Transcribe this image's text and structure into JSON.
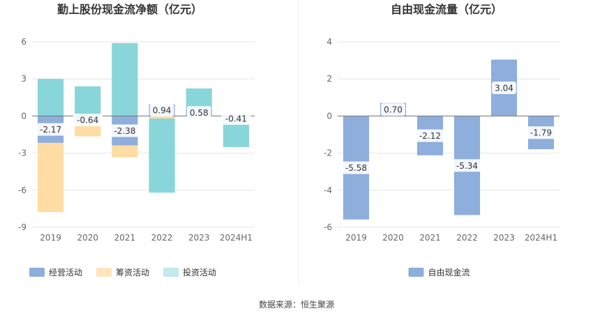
{
  "source_label": "数据来源：恒生聚源",
  "chart_data": [
    {
      "type": "bar",
      "stacked": true,
      "title": "勤上股份现金流净额（亿元）",
      "categories": [
        "2019",
        "2020",
        "2021",
        "2022",
        "2023",
        "2024H1"
      ],
      "yticks": [
        "6",
        "3",
        "0",
        "-3",
        "-6",
        "-9"
      ],
      "ylim": [
        -9,
        6
      ],
      "series": [
        {
          "name": "经营活动",
          "color": "#8eaedc",
          "values": [
            -2.17,
            -0.64,
            -2.38,
            0.94,
            0.58,
            -0.41
          ]
        },
        {
          "name": "筹资活动",
          "color": "#fedca3",
          "values": [
            -5.6,
            -1.0,
            -0.95,
            -0.2,
            0,
            0
          ]
        },
        {
          "name": "投资活动",
          "color": "#88d6d9",
          "values": [
            3.0,
            2.4,
            5.9,
            -6.0,
            1.65,
            -2.1
          ]
        }
      ],
      "data_labels": [
        "-2.17",
        "-0.64",
        "-2.38",
        "0.94",
        "0.58",
        "-0.41"
      ],
      "legend": "bottom"
    },
    {
      "type": "bar",
      "title": "自由现金流量（亿元）",
      "categories": [
        "2019",
        "2020",
        "2021",
        "2022",
        "2023",
        "2024H1"
      ],
      "yticks": [
        "4",
        "2",
        "0",
        "-2",
        "-4",
        "-6"
      ],
      "ylim": [
        -6,
        4
      ],
      "series": [
        {
          "name": "自由现金流",
          "color": "#8eaedc",
          "values": [
            -5.58,
            0.7,
            -2.12,
            -5.34,
            3.04,
            -1.79
          ]
        }
      ],
      "data_labels": [
        "-5.58",
        "0.70",
        "-2.12",
        "-5.34",
        "3.04",
        "-1.79"
      ],
      "legend": "bottom"
    }
  ]
}
